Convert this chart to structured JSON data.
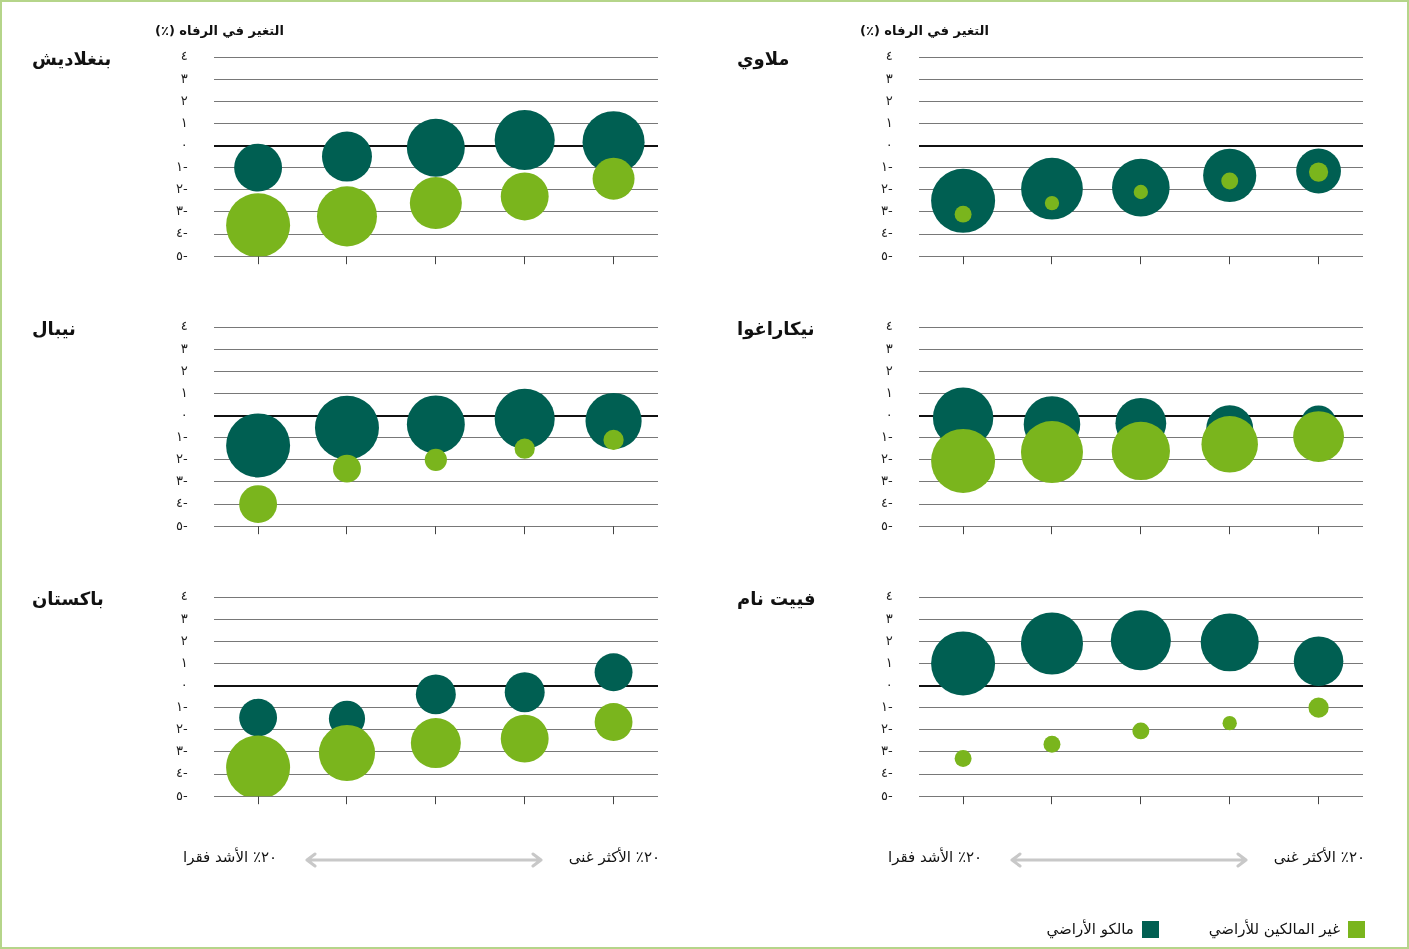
{
  "chart_data": [
    {
      "type": "bubble",
      "title": "بنغلاديش",
      "ylabel": "التغير في الرفاه (٪)",
      "categories": [
        null,
        null,
        null,
        null,
        null
      ],
      "ylim": [
        -5,
        4
      ],
      "yticks": [
        {
          "value": 4,
          "label": "٤"
        },
        {
          "value": 3,
          "label": "٣"
        },
        {
          "value": 2,
          "label": "٢"
        },
        {
          "value": 1,
          "label": "١"
        },
        {
          "value": 0,
          "label": "٠"
        },
        {
          "value": -1,
          "label": "١-"
        },
        {
          "value": -2,
          "label": "٢-"
        },
        {
          "value": -3,
          "label": "٣-"
        },
        {
          "value": -4,
          "label": "٤-"
        },
        {
          "value": -5,
          "label": "٥-"
        }
      ],
      "grid": "y",
      "legend": false,
      "series": [
        {
          "color": "#005f52",
          "values": [
            -1.0,
            -0.5,
            -0.1,
            0.25,
            0.15
          ],
          "sizes": [
            0.56,
            0.61,
            0.82,
            0.88,
            0.94
          ]
        },
        {
          "color": "#7ab51d",
          "values": [
            -3.6,
            -3.2,
            -2.6,
            -2.3,
            -1.5
          ],
          "sizes": [
            1,
            0.88,
            0.66,
            0.56,
            0.43
          ]
        }
      ]
    },
    {
      "type": "bubble",
      "title": "ملاوي",
      "ylabel": "التغير في الرفاه (٪)",
      "categories": [
        null,
        null,
        null,
        null,
        null
      ],
      "ylim": [
        -5,
        4
      ],
      "yticks": [
        {
          "value": 4,
          "label": "٤"
        },
        {
          "value": 3,
          "label": "٣"
        },
        {
          "value": 2,
          "label": "٢"
        },
        {
          "value": 1,
          "label": "١"
        },
        {
          "value": 0,
          "label": "٠"
        },
        {
          "value": -1,
          "label": "١-"
        },
        {
          "value": -2,
          "label": "٢-"
        },
        {
          "value": -3,
          "label": "٣-"
        },
        {
          "value": -4,
          "label": "٤-"
        },
        {
          "value": -5,
          "label": "٥-"
        }
      ],
      "grid": "y",
      "legend": false,
      "series": [
        {
          "color": "#005f52",
          "values": [
            -2.5,
            -1.95,
            -1.9,
            -1.35,
            -1.15
          ],
          "sizes": [
            1,
            0.93,
            0.81,
            0.69,
            0.49
          ]
        },
        {
          "color": "#7ab51d",
          "values": [
            -3.1,
            -2.6,
            -2.1,
            -1.6,
            -1.2
          ],
          "sizes": [
            0.07,
            0.05,
            0.05,
            0.07,
            0.09
          ]
        }
      ]
    },
    {
      "type": "bubble",
      "title": "نيبال",
      "categories": [
        null,
        null,
        null,
        null,
        null
      ],
      "ylim": [
        -5,
        4
      ],
      "yticks": [
        {
          "value": 4,
          "label": "٤"
        },
        {
          "value": 3,
          "label": "٣"
        },
        {
          "value": 2,
          "label": "٢"
        },
        {
          "value": 1,
          "label": "١"
        },
        {
          "value": 0,
          "label": "٠"
        },
        {
          "value": -1,
          "label": "١-"
        },
        {
          "value": -2,
          "label": "٢-"
        },
        {
          "value": -3,
          "label": "٣-"
        },
        {
          "value": -4,
          "label": "٤-"
        },
        {
          "value": -5,
          "label": "٥-"
        }
      ],
      "grid": "y",
      "legend": false,
      "series": [
        {
          "color": "#005f52",
          "values": [
            -1.35,
            -0.55,
            -0.4,
            -0.15,
            -0.25
          ],
          "sizes": [
            1,
            1,
            0.82,
            0.88,
            0.77
          ]
        },
        {
          "color": "#7ab51d",
          "values": [
            -4.0,
            -2.4,
            -2.0,
            -1.5,
            -1.1
          ],
          "sizes": [
            0.35,
            0.19,
            0.12,
            0.1,
            0.1
          ]
        }
      ]
    },
    {
      "type": "bubble",
      "title": "نيكاراغوا",
      "categories": [
        null,
        null,
        null,
        null,
        null
      ],
      "ylim": [
        -5,
        4
      ],
      "yticks": [
        {
          "value": 4,
          "label": "٤"
        },
        {
          "value": 3,
          "label": "٣"
        },
        {
          "value": 2,
          "label": "٢"
        },
        {
          "value": 1,
          "label": "١"
        },
        {
          "value": 0,
          "label": "٠"
        },
        {
          "value": -1,
          "label": "١-"
        },
        {
          "value": -2,
          "label": "٢-"
        },
        {
          "value": -3,
          "label": "٣-"
        },
        {
          "value": -4,
          "label": "٤-"
        },
        {
          "value": -5,
          "label": "٥-"
        }
      ],
      "grid": "y",
      "legend": false,
      "series": [
        {
          "color": "#005f52",
          "values": [
            -0.1,
            -0.4,
            -0.35,
            -0.6,
            -0.35
          ],
          "sizes": [
            0.89,
            0.78,
            0.63,
            0.54,
            0.31
          ]
        },
        {
          "color": "#7ab51d",
          "values": [
            -2.05,
            -1.65,
            -1.6,
            -1.3,
            -0.95
          ],
          "sizes": [
            1,
            0.94,
            0.83,
            0.78,
            0.63
          ]
        }
      ]
    },
    {
      "type": "bubble",
      "title": "باكستان",
      "categories": [
        null,
        null,
        null,
        null,
        null
      ],
      "ylim": [
        -5,
        4
      ],
      "yticks": [
        {
          "value": 4,
          "label": "٤"
        },
        {
          "value": 3,
          "label": "٣"
        },
        {
          "value": 2,
          "label": "٢"
        },
        {
          "value": 1,
          "label": "١"
        },
        {
          "value": 0,
          "label": "٠"
        },
        {
          "value": -1,
          "label": "١-"
        },
        {
          "value": -2,
          "label": "٢-"
        },
        {
          "value": -3,
          "label": "٣-"
        },
        {
          "value": -4,
          "label": "٤-"
        },
        {
          "value": -5,
          "label": "٥-"
        }
      ],
      "grid": "y",
      "legend": false,
      "annotations": [
        "٢٠٪ الأشد فقرا",
        "٢٠٪ الأكثر غنى"
      ],
      "series": [
        {
          "color": "#005f52",
          "values": [
            -1.45,
            -1.5,
            -0.4,
            -0.3,
            0.6
          ],
          "sizes": [
            0.35,
            0.32,
            0.39,
            0.39,
            0.35
          ]
        },
        {
          "color": "#7ab51d",
          "values": [
            -3.7,
            -3.05,
            -2.6,
            -2.4,
            -1.65
          ],
          "sizes": [
            1,
            0.77,
            0.61,
            0.56,
            0.35
          ]
        }
      ]
    },
    {
      "type": "bubble",
      "title": "فييت نام",
      "categories": [
        null,
        null,
        null,
        null,
        null
      ],
      "ylim": [
        -5,
        4
      ],
      "yticks": [
        {
          "value": 4,
          "label": "٤"
        },
        {
          "value": 3,
          "label": "٣"
        },
        {
          "value": 2,
          "label": "٢"
        },
        {
          "value": 1,
          "label": "١"
        },
        {
          "value": 0,
          "label": "٠"
        },
        {
          "value": -1,
          "label": "١-"
        },
        {
          "value": -2,
          "label": "٢-"
        },
        {
          "value": -3,
          "label": "٣-"
        },
        {
          "value": -4,
          "label": "٤-"
        },
        {
          "value": -5,
          "label": "٥-"
        }
      ],
      "grid": "y",
      "legend": "bottom right",
      "annotations": [
        "٢٠٪ الأشد فقرا",
        "٢٠٪ الأكثر غنى"
      ],
      "series": [
        {
          "name": "مالكو الأراضي",
          "color": "#005f52",
          "values": [
            1.0,
            1.9,
            2.05,
            1.95,
            1.1
          ],
          "sizes": [
            1,
            0.94,
            0.88,
            0.82,
            0.6
          ]
        },
        {
          "name": "غير المالكين للأراضي",
          "color": "#7ab51d",
          "values": [
            -3.3,
            -2.65,
            -2.05,
            -1.7,
            -1.0
          ],
          "sizes": [
            0.07,
            0.07,
            0.07,
            0.05,
            0.1
          ]
        }
      ]
    }
  ]
}
